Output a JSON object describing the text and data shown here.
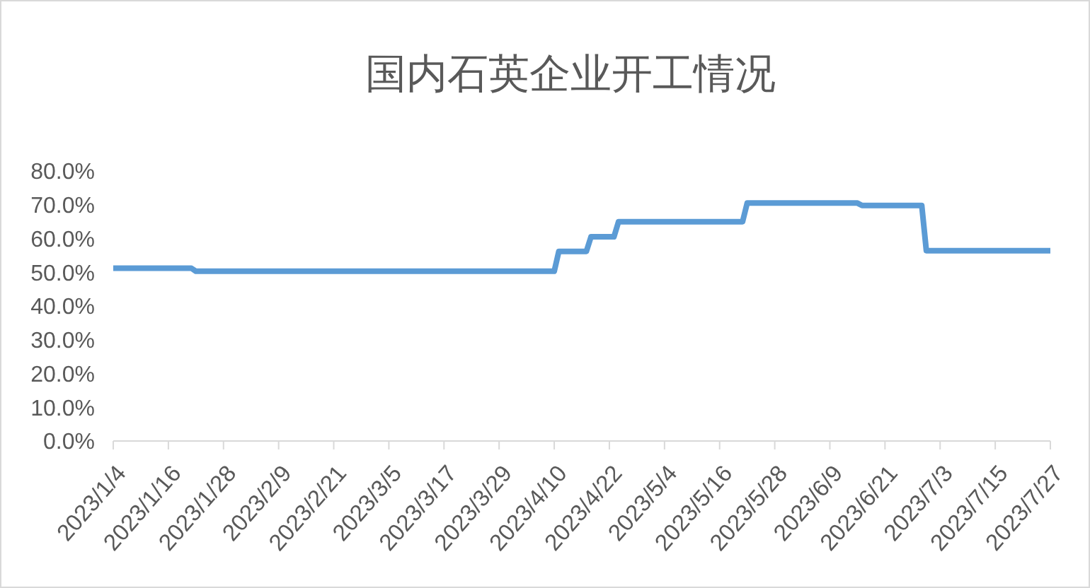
{
  "chart_data": {
    "type": "line",
    "title": "国内石英企业开工情况",
    "x": [
      "2023-01-04",
      "2023-01-21",
      "2023-01-22",
      "2023-04-10",
      "2023-04-11",
      "2023-04-17",
      "2023-04-18",
      "2023-04-23",
      "2023-04-24",
      "2023-05-21",
      "2023-05-22",
      "2023-06-15",
      "2023-06-16",
      "2023-06-29",
      "2023-06-30",
      "2023-07-27"
    ],
    "series": [
      {
        "color": "#5b9bd5",
        "values": [
          51.2,
          51.2,
          50.3,
          50.3,
          56.2,
          56.2,
          60.5,
          60.5,
          65.0,
          65.0,
          70.5,
          70.5,
          69.8,
          69.8,
          56.4,
          56.4
        ]
      }
    ],
    "xlim": [
      "2023-01-04",
      "2023-07-27"
    ],
    "xticks": [
      {
        "value": "2023-01-04",
        "label": "2023/1/4"
      },
      {
        "value": "2023-01-16",
        "label": "2023/1/16"
      },
      {
        "value": "2023-01-28",
        "label": "2023/1/28"
      },
      {
        "value": "2023-02-09",
        "label": "2023/2/9"
      },
      {
        "value": "2023-02-21",
        "label": "2023/2/21"
      },
      {
        "value": "2023-03-05",
        "label": "2023/3/5"
      },
      {
        "value": "2023-03-17",
        "label": "2023/3/17"
      },
      {
        "value": "2023-03-29",
        "label": "2023/3/29"
      },
      {
        "value": "2023-04-10",
        "label": "2023/4/10"
      },
      {
        "value": "2023-04-22",
        "label": "2023/4/22"
      },
      {
        "value": "2023-05-04",
        "label": "2023/5/4"
      },
      {
        "value": "2023-05-16",
        "label": "2023/5/16"
      },
      {
        "value": "2023-05-28",
        "label": "2023/5/28"
      },
      {
        "value": "2023-06-09",
        "label": "2023/6/9"
      },
      {
        "value": "2023-06-21",
        "label": "2023/6/21"
      },
      {
        "value": "2023-07-03",
        "label": "2023/7/3"
      },
      {
        "value": "2023-07-15",
        "label": "2023/7/15"
      },
      {
        "value": "2023-07-27",
        "label": "2023/7/27"
      }
    ],
    "ylim": [
      0,
      80
    ],
    "yticks": [
      {
        "value": 0,
        "label": "0.0%"
      },
      {
        "value": 10,
        "label": "10.0%"
      },
      {
        "value": 20,
        "label": "20.0%"
      },
      {
        "value": 30,
        "label": "30.0%"
      },
      {
        "value": 40,
        "label": "40.0%"
      },
      {
        "value": 50,
        "label": "50.0%"
      },
      {
        "value": 60,
        "label": "60.0%"
      },
      {
        "value": 70,
        "label": "70.0%"
      },
      {
        "value": 80,
        "label": "80.0%"
      }
    ],
    "marker": "none",
    "line_style": "solid"
  }
}
